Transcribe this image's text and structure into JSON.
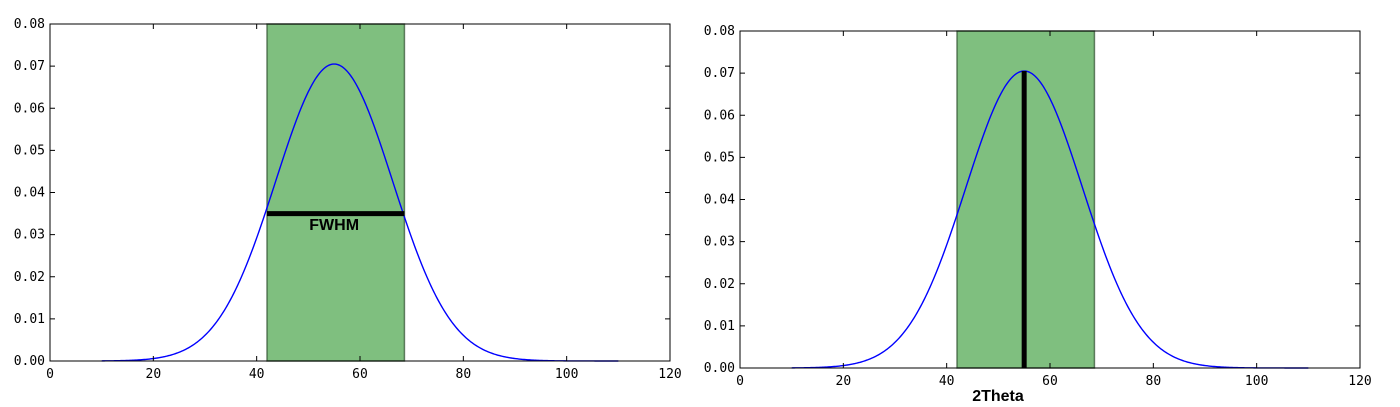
{
  "chart_data": [
    {
      "type": "line",
      "series": [
        {
          "curve": "gaussian",
          "mean": 55.0,
          "sigma": 11.3,
          "amplitude": 0.0705,
          "x_start": 10,
          "x_end": 110,
          "color": "#0000ff"
        }
      ],
      "shaded_region": {
        "x_start": 42.0,
        "x_end": 68.6,
        "color": "#008000",
        "alpha": 0.5
      },
      "marker_line": {
        "orientation": "horizontal",
        "x_start": 42.0,
        "x_end": 68.6,
        "y": 0.035,
        "color": "#000000"
      },
      "annotation": {
        "text": "FWHM",
        "x": 55.0,
        "y": 0.032
      },
      "xlim": [
        0,
        120
      ],
      "ylim": [
        0,
        0.08
      ],
      "xticks": [
        0,
        20,
        40,
        60,
        80,
        100,
        120
      ],
      "yticks": [
        0.0,
        0.01,
        0.02,
        0.03,
        0.04,
        0.05,
        0.06,
        0.07,
        0.08
      ],
      "xtick_labels": [
        "0",
        "20",
        "40",
        "60",
        "80",
        "100",
        "120"
      ],
      "ytick_labels": [
        "0.00",
        "0.01",
        "0.02",
        "0.03",
        "0.04",
        "0.05",
        "0.06",
        "0.07",
        "0.08"
      ],
      "grid": false
    },
    {
      "type": "line",
      "series": [
        {
          "curve": "gaussian",
          "mean": 55.0,
          "sigma": 11.3,
          "amplitude": 0.0705,
          "x_start": 10,
          "x_end": 110,
          "color": "#0000ff"
        }
      ],
      "shaded_region": {
        "x_start": 42.0,
        "x_end": 68.6,
        "color": "#008000",
        "alpha": 0.5
      },
      "marker_line": {
        "orientation": "vertical",
        "x": 55.0,
        "y_start": 0.0,
        "y_end": 0.0705,
        "color": "#000000"
      },
      "xlabel": "2Theta",
      "xlim": [
        0,
        120
      ],
      "ylim": [
        0,
        0.08
      ],
      "xticks": [
        0,
        20,
        40,
        60,
        80,
        100,
        120
      ],
      "yticks": [
        0.0,
        0.01,
        0.02,
        0.03,
        0.04,
        0.05,
        0.06,
        0.07,
        0.08
      ],
      "xtick_labels": [
        "0",
        "20",
        "40",
        "60",
        "80",
        "100",
        "120"
      ],
      "ytick_labels": [
        "0.00",
        "0.01",
        "0.02",
        "0.03",
        "0.04",
        "0.05",
        "0.06",
        "0.07",
        "0.08"
      ],
      "grid": false
    }
  ]
}
